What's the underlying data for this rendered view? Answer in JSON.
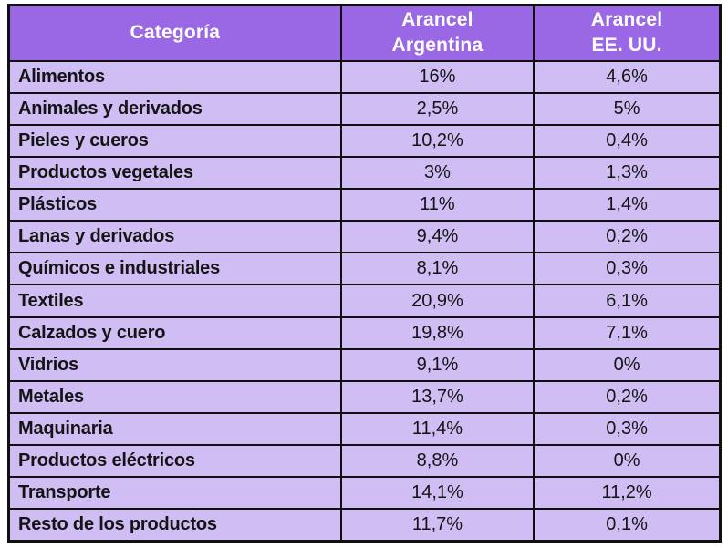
{
  "colors": {
    "header_bg": "#9a67e5",
    "row_bg": "#cfbdf4",
    "border": "#101010",
    "header_text": "#ffffff",
    "body_text": "#141414"
  },
  "table": {
    "headers": [
      "Categoría",
      "Arancel\nArgentina",
      "Arancel\nEE. UU."
    ]
  },
  "chart_data": {
    "type": "table",
    "columns": [
      "Categoría",
      "Arancel Argentina",
      "Arancel EE. UU."
    ],
    "rows": [
      [
        "Alimentos",
        "16%",
        "4,6%"
      ],
      [
        "Animales y derivados",
        "2,5%",
        "5%"
      ],
      [
        "Pieles y cueros",
        "10,2%",
        "0,4%"
      ],
      [
        "Productos vegetales",
        "3%",
        "1,3%"
      ],
      [
        "Plásticos",
        "11%",
        "1,4%"
      ],
      [
        "Lanas y derivados",
        "9,4%",
        "0,2%"
      ],
      [
        "Químicos e industriales",
        "8,1%",
        "0,3%"
      ],
      [
        "Textiles",
        "20,9%",
        "6,1%"
      ],
      [
        "Calzados y cuero",
        "19,8%",
        "7,1%"
      ],
      [
        "Vidrios",
        "9,1%",
        "0%"
      ],
      [
        "Metales",
        "13,7%",
        "0,2%"
      ],
      [
        "Maquinaria",
        "11,4%",
        "0,3%"
      ],
      [
        "Productos eléctricos",
        "8,8%",
        "0%"
      ],
      [
        "Transporte",
        "14,1%",
        "11,2%"
      ],
      [
        "Resto de los productos",
        "11,7%",
        "0,1%"
      ]
    ]
  }
}
